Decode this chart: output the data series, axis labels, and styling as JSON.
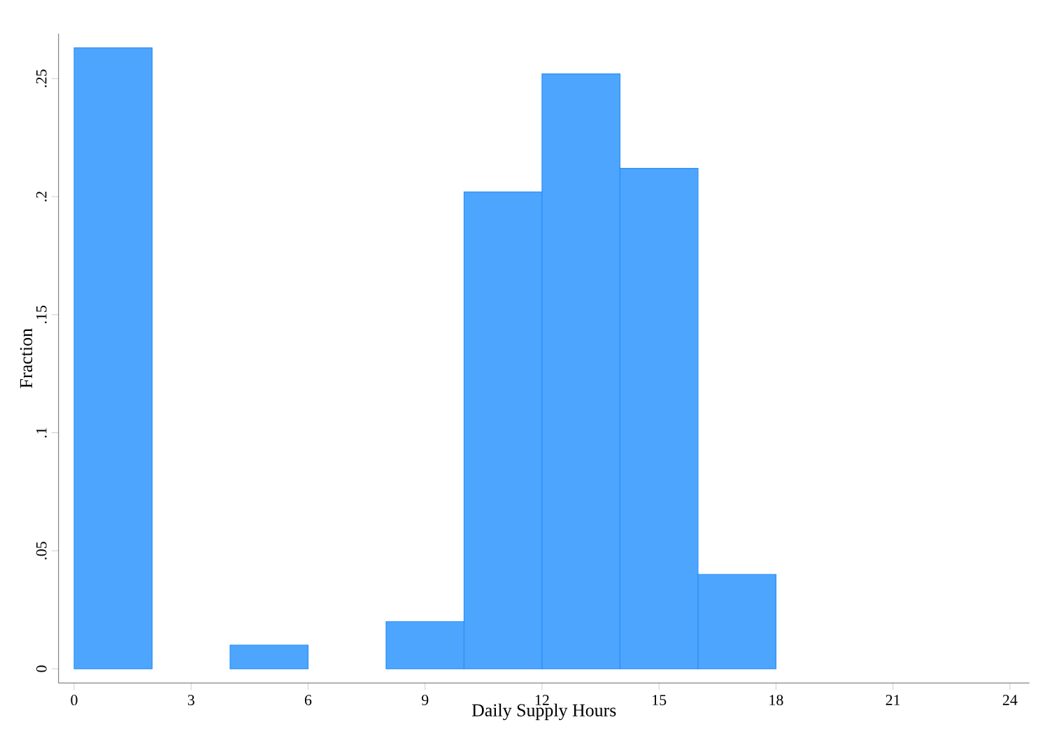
{
  "chart_data": {
    "type": "histogram",
    "xlabel": "Daily Supply Hours",
    "ylabel": "Fraction",
    "bins": [
      0,
      2,
      4,
      6,
      8,
      10,
      12,
      14,
      16,
      18
    ],
    "values": [
      0.263,
      0,
      0.01,
      0,
      0.02,
      0.202,
      0.252,
      0.212,
      0.04
    ],
    "color": "#4ea5fe",
    "xlim": [
      -0.4,
      24.5
    ],
    "ylim": [
      -0.006,
      0.269
    ],
    "xticks": [
      0,
      3,
      6,
      9,
      12,
      15,
      18,
      21,
      24
    ],
    "yticks": [
      {
        "value": 0,
        "label": "0"
      },
      {
        "value": 0.05,
        "label": ".05"
      },
      {
        "value": 0.1,
        "label": ".1"
      },
      {
        "value": 0.15,
        "label": ".15"
      },
      {
        "value": 0.2,
        "label": ".2"
      },
      {
        "value": 0.25,
        "label": ".25"
      }
    ],
    "tick_labels": "xy"
  }
}
